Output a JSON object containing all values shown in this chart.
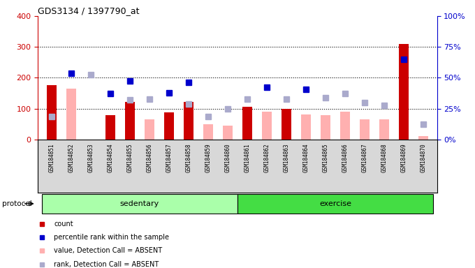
{
  "title": "GDS3134 / 1397790_at",
  "samples": [
    "GSM184851",
    "GSM184852",
    "GSM184853",
    "GSM184854",
    "GSM184855",
    "GSM184856",
    "GSM184857",
    "GSM184858",
    "GSM184859",
    "GSM184860",
    "GSM184861",
    "GSM184862",
    "GSM184863",
    "GSM184864",
    "GSM184865",
    "GSM184866",
    "GSM184867",
    "GSM184868",
    "GSM184869",
    "GSM184870"
  ],
  "count_red": [
    175,
    0,
    0,
    78,
    122,
    0,
    88,
    122,
    0,
    0,
    105,
    0,
    100,
    0,
    0,
    0,
    0,
    0,
    310,
    0
  ],
  "count_pink": [
    20,
    165,
    0,
    0,
    0,
    65,
    0,
    0,
    50,
    45,
    0,
    90,
    0,
    80,
    78,
    90,
    65,
    65,
    0,
    10
  ],
  "rank_blue": [
    0,
    215,
    0,
    148,
    190,
    0,
    150,
    185,
    0,
    0,
    0,
    170,
    0,
    162,
    0,
    0,
    0,
    0,
    260,
    0
  ],
  "rank_lightblue": [
    75,
    0,
    210,
    0,
    128,
    130,
    0,
    115,
    75,
    98,
    130,
    0,
    130,
    0,
    135,
    148,
    120,
    110,
    0,
    48
  ],
  "sedentary_count": 10,
  "exercise_count": 10,
  "ylim_left": [
    0,
    400
  ],
  "yticks_left": [
    0,
    100,
    200,
    300,
    400
  ],
  "yticks_right": [
    0,
    25,
    50,
    75,
    100
  ],
  "ytick_labels_right": [
    "0%",
    "25%",
    "50%",
    "75%",
    "100%"
  ],
  "color_red": "#cc0000",
  "color_pink": "#ffb0b0",
  "color_blue": "#0000cc",
  "color_lightblue": "#aaaacc",
  "color_green_light": "#aaffaa",
  "color_green_dark": "#44dd44",
  "color_gray_bg": "#d8d8d8",
  "bar_width": 0.5,
  "protocol_label": "protocol",
  "sedentary_label": "sedentary",
  "exercise_label": "exercise"
}
